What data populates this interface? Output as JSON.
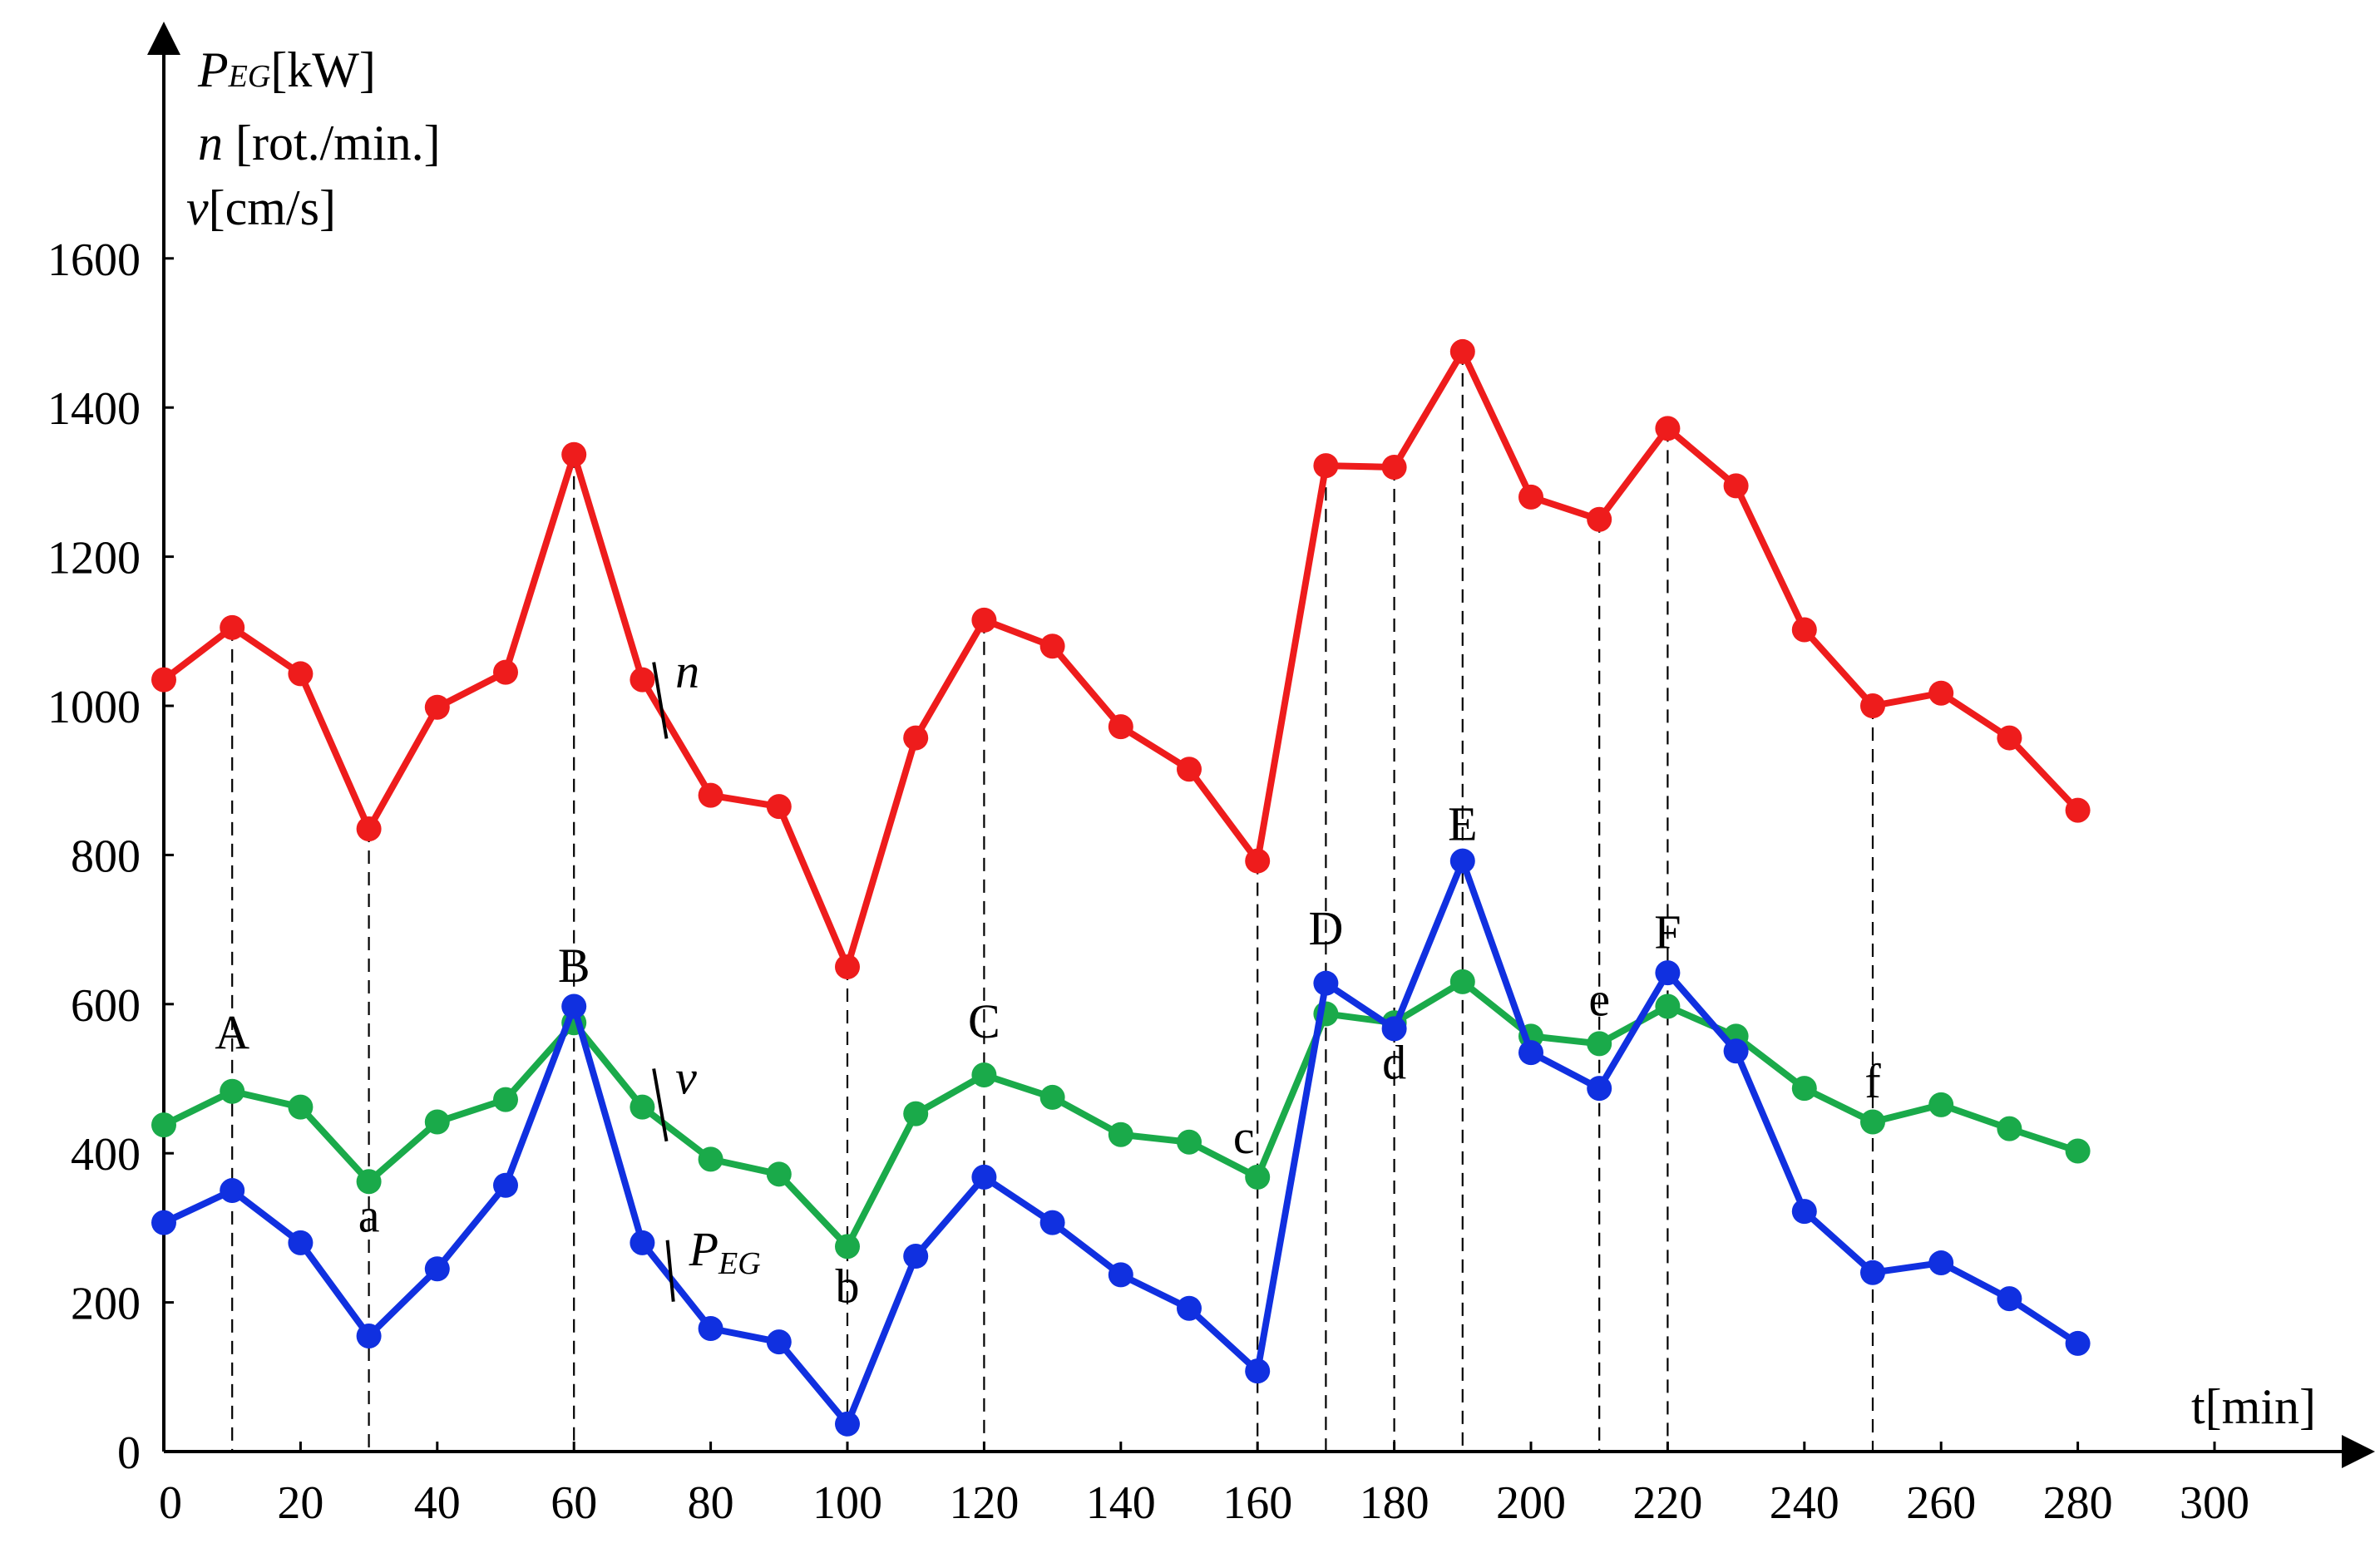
{
  "chart_data": {
    "type": "line",
    "x": [
      0,
      10,
      20,
      30,
      40,
      50,
      60,
      70,
      80,
      90,
      100,
      110,
      120,
      130,
      140,
      150,
      160,
      170,
      180,
      190,
      200,
      210,
      220,
      230,
      240,
      250,
      260,
      270,
      280
    ],
    "xticks": [
      0,
      20,
      40,
      60,
      80,
      100,
      120,
      140,
      160,
      180,
      200,
      220,
      240,
      260,
      280,
      300
    ],
    "yticks": [
      0,
      200,
      400,
      600,
      800,
      1000,
      1200,
      1400,
      1600
    ],
    "xlim": [
      0,
      300
    ],
    "ylim": [
      0,
      1600
    ],
    "xlabel": "t[min]",
    "ylabel": {
      "line1_main": "P",
      "line1_sub": "EG",
      "line1_unit": "[kW]",
      "line2_main": "n",
      "line2_unit": " [rot./min.]",
      "line3_main": "v",
      "line3_unit": "[cm/s]"
    },
    "grid": false,
    "series": [
      {
        "key": "n",
        "name": "n",
        "color": "#ee1c1c",
        "values": [
          1035,
          1105,
          1043,
          835,
          998,
          1045,
          1337,
          1035,
          880,
          865,
          650,
          957,
          1115,
          1080,
          972,
          915,
          792,
          1322,
          1320,
          1475,
          1280,
          1250,
          1372,
          1295,
          1102,
          1000,
          1017,
          957,
          860
        ]
      },
      {
        "key": "v",
        "name": "v",
        "color": "#1aaa4a",
        "values": [
          438,
          483,
          462,
          362,
          442,
          472,
          575,
          462,
          392,
          372,
          275,
          453,
          505,
          475,
          425,
          415,
          368,
          587,
          575,
          630,
          557,
          547,
          597,
          557,
          487,
          442,
          465,
          433,
          403
        ]
      },
      {
        "key": "peg",
        "name": "P",
        "name_sub": "EG",
        "color": "#1030e0",
        "values": [
          307,
          350,
          280,
          155,
          245,
          357,
          597,
          280,
          165,
          147,
          37,
          262,
          368,
          307,
          237,
          192,
          108,
          628,
          567,
          792,
          535,
          487,
          642,
          537,
          322,
          240,
          253,
          205,
          145
        ]
      }
    ],
    "series_labels": [
      {
        "series": "n",
        "text": "n",
        "at_x": 78,
        "at_y": 1025,
        "pointer_to": [
          75,
          965
        ]
      },
      {
        "series": "v",
        "text": "v",
        "at_x": 78,
        "at_y": 480,
        "pointer_to": [
          75,
          425
        ]
      },
      {
        "series": "peg",
        "text": "P",
        "sub": "EG",
        "at_x": 80,
        "at_y": 250,
        "pointer_to": [
          76,
          210
        ]
      }
    ],
    "annotations": [
      {
        "label": "A",
        "x": 10,
        "line_top": 1105,
        "label_y": 540
      },
      {
        "label": "a",
        "x": 30,
        "line_top": 835,
        "label_y": 295
      },
      {
        "label": "B",
        "x": 60,
        "line_top": 1337,
        "label_y": 630
      },
      {
        "label": "b",
        "x": 100,
        "line_top": 650,
        "label_y": 200
      },
      {
        "label": "C",
        "x": 120,
        "line_top": 1115,
        "label_y": 555
      },
      {
        "label": "c",
        "x": 160,
        "line_top": 792,
        "label_y": 400,
        "label_dx": -2
      },
      {
        "label": "D",
        "x": 170,
        "line_top": 1322,
        "label_y": 680
      },
      {
        "label": "d",
        "x": 180,
        "line_top": 1320,
        "label_y": 500
      },
      {
        "label": "E",
        "x": 190,
        "line_top": 1475,
        "label_y": 820
      },
      {
        "label": "e",
        "x": 210,
        "line_top": 1250,
        "label_y": 585
      },
      {
        "label": "F",
        "x": 220,
        "line_top": 1372,
        "label_y": 675
      },
      {
        "label": "f",
        "x": 250,
        "line_top": 1000,
        "label_y": 475
      }
    ]
  }
}
